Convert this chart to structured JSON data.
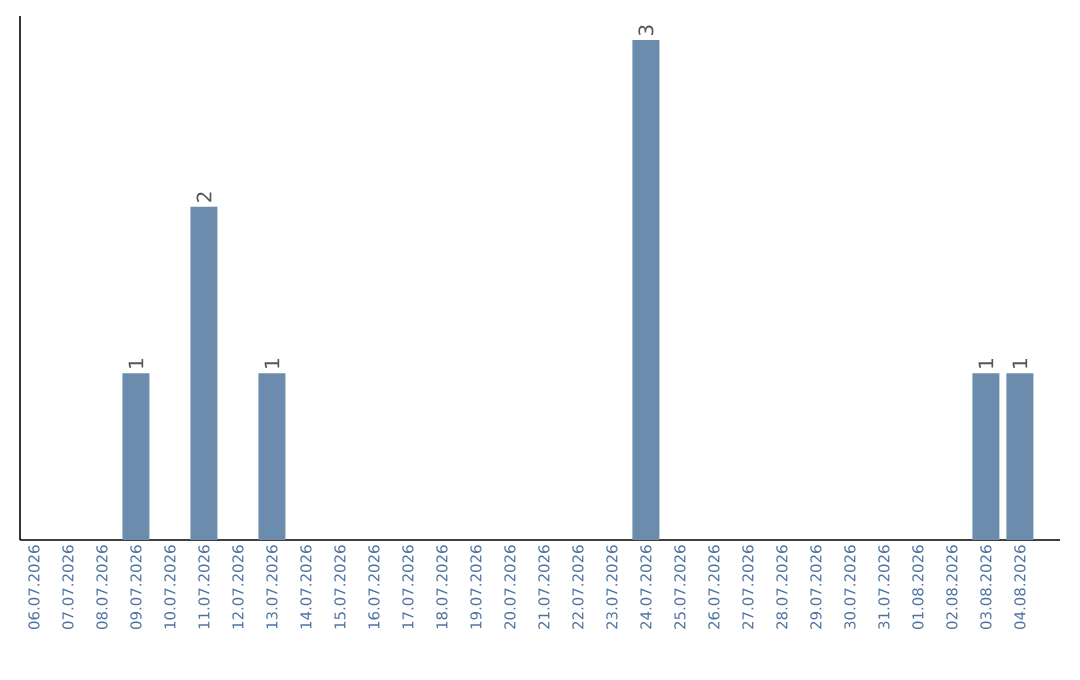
{
  "chart_data": {
    "type": "bar",
    "categories": [
      "06.07.2026",
      "07.07.2026",
      "08.07.2026",
      "09.07.2026",
      "10.07.2026",
      "11.07.2026",
      "12.07.2026",
      "13.07.2026",
      "14.07.2026",
      "15.07.2026",
      "16.07.2026",
      "17.07.2026",
      "18.07.2026",
      "19.07.2026",
      "20.07.2026",
      "21.07.2026",
      "22.07.2026",
      "23.07.2026",
      "24.07.2026",
      "25.07.2026",
      "26.07.2026",
      "27.07.2026",
      "28.07.2026",
      "29.07.2026",
      "30.07.2026",
      "31.07.2026",
      "01.08.2026",
      "02.08.2026",
      "03.08.2026",
      "04.08.2026"
    ],
    "values": [
      0,
      0,
      0,
      1,
      0,
      2,
      0,
      1,
      0,
      0,
      0,
      0,
      0,
      0,
      0,
      0,
      0,
      0,
      3,
      0,
      0,
      0,
      0,
      0,
      0,
      0,
      0,
      0,
      1,
      1
    ],
    "value_labels": [
      null,
      null,
      null,
      "1",
      null,
      "2",
      null,
      "1",
      null,
      null,
      null,
      null,
      null,
      null,
      null,
      null,
      null,
      null,
      "3",
      null,
      null,
      null,
      null,
      null,
      null,
      null,
      null,
      null,
      "1",
      "1"
    ],
    "color": "#6b8cad"
  }
}
